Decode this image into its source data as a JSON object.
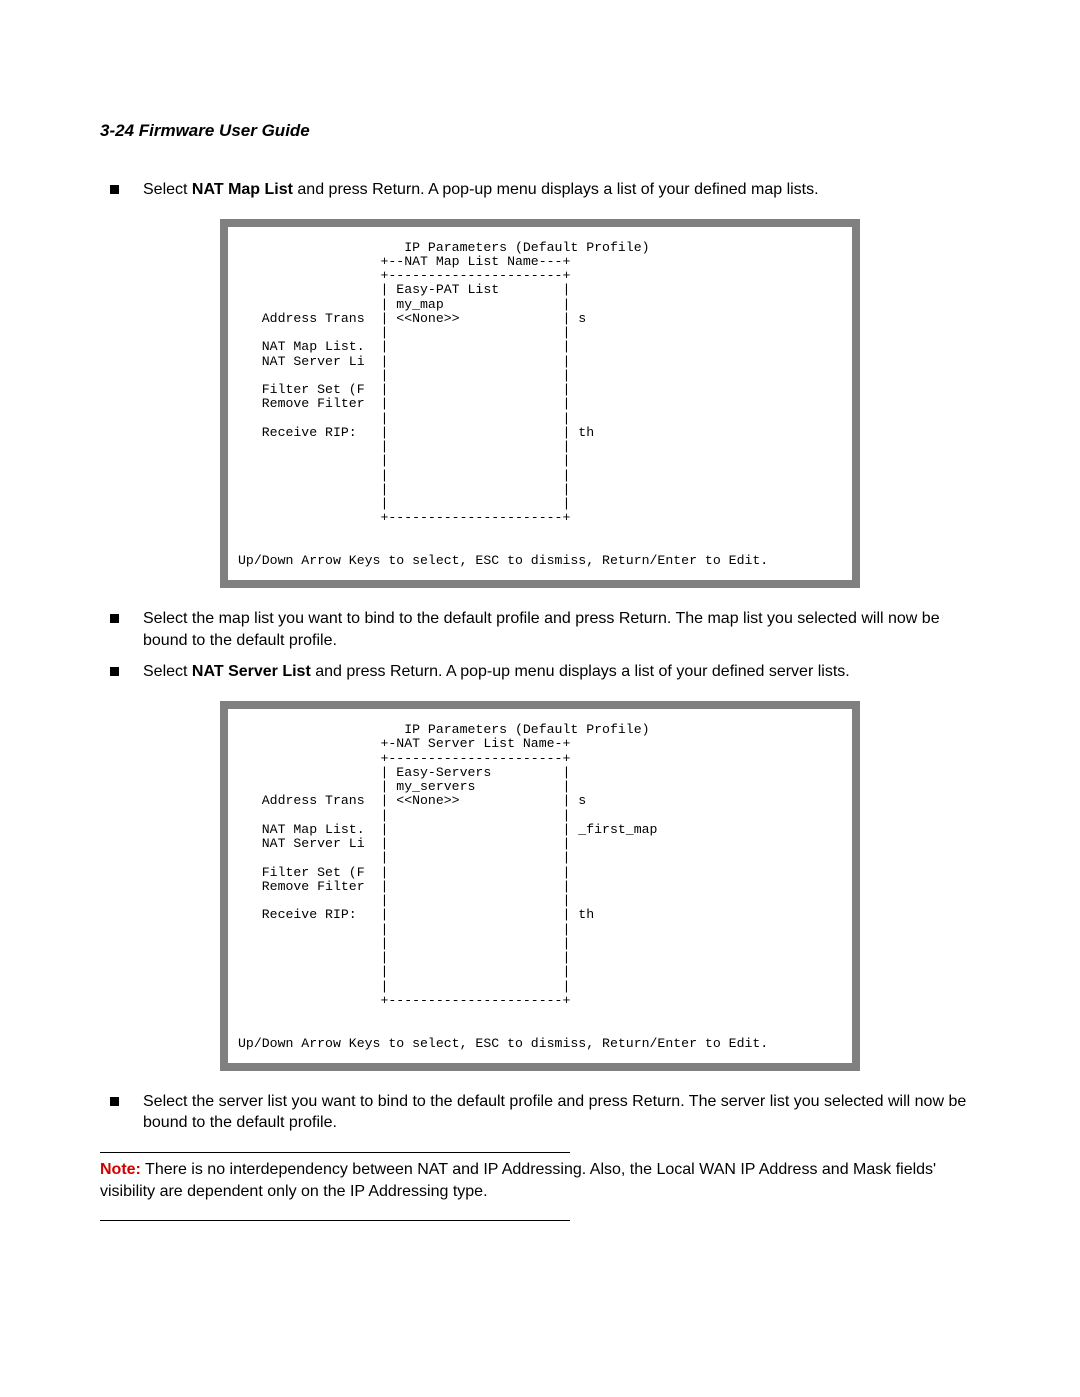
{
  "header": "3-24  Firmware User Guide",
  "bullets": {
    "b1_pre": "Select ",
    "b1_bold": "NAT Map List",
    "b1_post": " and press Return. A pop-up menu displays a list of your defined map lists.",
    "b2": "Select the map list you want to bind to the default profile and press Return. The map list you selected will now be bound to the default profile.",
    "b3_pre": "Select ",
    "b3_bold": "NAT Server List",
    "b3_post": " and press Return. A pop-up menu displays a list of your defined server lists.",
    "b4": "Select the server list you want to bind to the default profile and press Return. The server list you selected will now be bound to the default profile."
  },
  "terminal1": {
    "text": "                     IP Parameters (Default Profile)\n                  +--NAT Map List Name---+\n                  +----------------------+\n                  | Easy-PAT List        |\n                  | my_map               |\n   Address Trans  | <<None>>             | s\n                  |                      |\n   NAT Map List.  |                      |\n   NAT Server Li  |                      |\n                  |                      |\n   Filter Set (F  |                      |\n   Remove Filter  |                      |\n                  |                      |\n   Receive RIP:   |                      | th\n                  |                      |\n                  |                      |\n                  |                      |\n                  |                      |\n                  |                      |\n                  +----------------------+\n\n\nUp/Down Arrow Keys to select, ESC to dismiss, Return/Enter to Edit."
  },
  "terminal2": {
    "text": "                     IP Parameters (Default Profile)\n                  +-NAT Server List Name-+\n                  +----------------------+\n                  | Easy-Servers         |\n                  | my_servers           |\n   Address Trans  | <<None>>             | s\n                  |                      |\n   NAT Map List.  |                      | _first_map\n   NAT Server Li  |                      |\n                  |                      |\n   Filter Set (F  |                      |\n   Remove Filter  |                      |\n                  |                      |\n   Receive RIP:   |                      | th\n                  |                      |\n                  |                      |\n                  |                      |\n                  |                      |\n                  |                      |\n                  +----------------------+\n\n\nUp/Down Arrow Keys to select, ESC to dismiss, Return/Enter to Edit."
  },
  "note": {
    "label": "Note:",
    "text": "  There is no interdependency between NAT and IP Addressing. Also, the Local WAN IP Address and Mask fields' visibility are dependent only on the IP Addressing type."
  },
  "colors": {
    "terminal_border": "#808080",
    "text": "#000000",
    "note_red": "#d00000",
    "background": "#ffffff"
  },
  "fonts": {
    "body_family": "Arial",
    "body_size_pt": 12,
    "mono_family": "Courier New",
    "mono_size_pt": 10
  }
}
